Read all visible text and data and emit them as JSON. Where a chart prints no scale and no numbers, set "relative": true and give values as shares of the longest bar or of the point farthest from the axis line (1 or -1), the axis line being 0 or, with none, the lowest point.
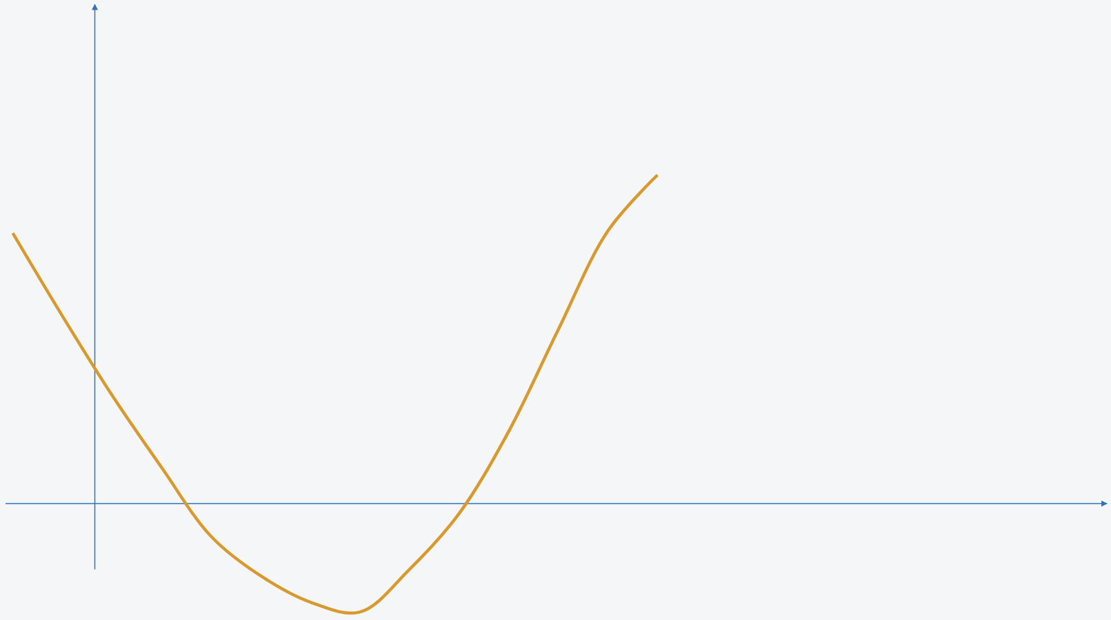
{
  "chart_data": {
    "type": "line",
    "relative": true,
    "ref_lines": [
      {
        "axis": "y",
        "value": 0,
        "color": "#2e75b6"
      }
    ],
    "categories": [
      null,
      null,
      null,
      null,
      null,
      null,
      null,
      null,
      null,
      null,
      null,
      null,
      null,
      null
    ],
    "series": [
      {
        "color": "#d89a2e",
        "values": [
          0.823,
          0.571,
          0.33,
          0.11,
          -0.1,
          -0.22,
          -0.3,
          -0.33,
          -0.2,
          -0.03,
          0.22,
          0.53,
          0.83,
          1
        ]
      }
    ]
  }
}
